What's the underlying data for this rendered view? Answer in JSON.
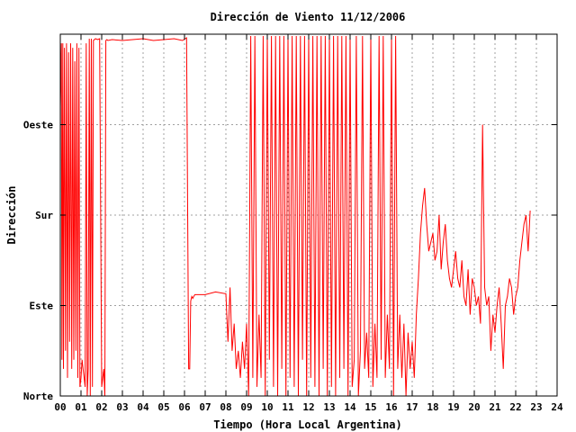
{
  "chart_data": {
    "type": "line",
    "title": "Dirección de Viento 11/12/2006",
    "xlabel": "Tiempo (Hora Local Argentina)",
    "ylabel": "Dirección",
    "xlim": [
      0,
      24
    ],
    "ylim": [
      0,
      4
    ],
    "x_ticks": [
      {
        "value": 0,
        "label": "00"
      },
      {
        "value": 1,
        "label": "01"
      },
      {
        "value": 2,
        "label": "02"
      },
      {
        "value": 3,
        "label": "03"
      },
      {
        "value": 4,
        "label": "04"
      },
      {
        "value": 5,
        "label": "05"
      },
      {
        "value": 6,
        "label": "06"
      },
      {
        "value": 7,
        "label": "07"
      },
      {
        "value": 8,
        "label": "08"
      },
      {
        "value": 9,
        "label": "09"
      },
      {
        "value": 10,
        "label": "10"
      },
      {
        "value": 11,
        "label": "11"
      },
      {
        "value": 12,
        "label": "12"
      },
      {
        "value": 13,
        "label": "13"
      },
      {
        "value": 14,
        "label": "14"
      },
      {
        "value": 15,
        "label": "15"
      },
      {
        "value": 16,
        "label": "16"
      },
      {
        "value": 17,
        "label": "17"
      },
      {
        "value": 18,
        "label": "18"
      },
      {
        "value": 19,
        "label": "19"
      },
      {
        "value": 20,
        "label": "20"
      },
      {
        "value": 21,
        "label": "21"
      },
      {
        "value": 22,
        "label": "22"
      },
      {
        "value": 23,
        "label": "23"
      },
      {
        "value": 24,
        "label": "24"
      }
    ],
    "y_ticks": [
      {
        "value": 0,
        "label": "Norte"
      },
      {
        "value": 1,
        "label": "Este"
      },
      {
        "value": 2,
        "label": "Sur"
      },
      {
        "value": 3,
        "label": "Oeste"
      }
    ],
    "grid": true,
    "legend": "none",
    "colors": {
      "series": "#ff0000",
      "grid": "#a0a0a0",
      "frame": "#000000"
    },
    "series": [
      {
        "color": "#ff0000",
        "x": [
          0.0,
          0.05,
          0.08,
          0.12,
          0.15,
          0.2,
          0.25,
          0.3,
          0.35,
          0.4,
          0.45,
          0.5,
          0.55,
          0.6,
          0.65,
          0.7,
          0.75,
          0.8,
          0.85,
          0.9,
          0.95,
          1.0,
          1.05,
          1.1,
          1.15,
          1.2,
          1.25,
          1.3,
          1.35,
          1.4,
          1.45,
          1.5,
          1.55,
          1.6,
          1.65,
          1.7,
          1.8,
          1.9,
          2.0,
          2.1,
          2.15,
          2.2,
          2.25,
          2.3,
          2.5,
          3.0,
          3.5,
          4.0,
          4.5,
          5.0,
          5.5,
          5.9,
          6.1,
          6.2,
          6.25,
          6.3,
          6.35,
          6.4,
          6.45,
          6.5,
          7.0,
          7.5,
          8.0,
          8.1,
          8.2,
          8.3,
          8.4,
          8.5,
          8.6,
          8.7,
          8.8,
          8.9,
          9.0,
          9.1,
          9.2,
          9.3,
          9.4,
          9.5,
          9.6,
          9.7,
          9.8,
          9.9,
          10.0,
          10.1,
          10.2,
          10.3,
          10.4,
          10.5,
          10.6,
          10.7,
          10.8,
          10.9,
          11.0,
          11.1,
          11.2,
          11.3,
          11.4,
          11.5,
          11.6,
          11.7,
          11.8,
          11.9,
          12.0,
          12.1,
          12.2,
          12.3,
          12.4,
          12.5,
          12.6,
          12.7,
          12.8,
          12.9,
          13.0,
          13.1,
          13.2,
          13.3,
          13.4,
          13.5,
          13.6,
          13.7,
          13.8,
          13.9,
          14.0,
          14.1,
          14.2,
          14.3,
          14.4,
          14.5,
          14.6,
          14.7,
          14.8,
          14.9,
          15.0,
          15.1,
          15.2,
          15.3,
          15.4,
          15.5,
          15.6,
          15.7,
          15.8,
          15.9,
          16.0,
          16.1,
          16.2,
          16.3,
          16.4,
          16.5,
          16.6,
          16.7,
          16.8,
          16.9,
          17.0,
          17.1,
          17.2,
          17.3,
          17.4,
          17.5,
          17.6,
          17.7,
          17.8,
          17.9,
          18.0,
          18.1,
          18.2,
          18.3,
          18.4,
          18.5,
          18.6,
          18.7,
          18.8,
          18.9,
          19.0,
          19.1,
          19.2,
          19.3,
          19.4,
          19.5,
          19.6,
          19.7,
          19.8,
          19.9,
          20.0,
          20.1,
          20.2,
          20.3,
          20.4,
          20.5,
          20.6,
          20.7,
          20.8,
          20.9,
          21.0,
          21.1,
          21.2,
          21.3,
          21.4,
          21.5,
          21.6,
          21.7,
          21.8,
          21.9,
          22.0,
          22.1,
          22.2,
          22.3,
          22.4,
          22.5,
          22.6,
          22.7
        ],
        "y": [
          3.2,
          3.9,
          0.4,
          3.9,
          0.3,
          3.85,
          0.5,
          3.9,
          0.2,
          3.8,
          0.6,
          3.9,
          0.3,
          3.85,
          0.4,
          3.7,
          0.5,
          3.9,
          0.2,
          3.85,
          0.1,
          0.2,
          0.4,
          0.3,
          0.2,
          0.1,
          3.9,
          0.0,
          0.3,
          3.95,
          0.0,
          3.95,
          0.1,
          3.93,
          3.94,
          3.95,
          3.94,
          3.95,
          0.1,
          0.3,
          0.0,
          3.93,
          3.94,
          3.93,
          3.94,
          3.93,
          3.94,
          3.95,
          3.93,
          3.94,
          3.95,
          3.93,
          3.96,
          0.3,
          0.3,
          1.05,
          1.1,
          1.08,
          1.1,
          1.12,
          1.12,
          1.15,
          1.13,
          0.6,
          1.2,
          0.5,
          0.8,
          0.3,
          0.5,
          0.2,
          0.6,
          0.3,
          0.8,
          0.0,
          3.98,
          0.2,
          3.98,
          0.1,
          0.9,
          0.2,
          3.98,
          0.0,
          3.98,
          0.4,
          3.98,
          0.1,
          3.98,
          0.0,
          3.98,
          0.3,
          3.98,
          0.0,
          3.98,
          0.2,
          3.98,
          0.1,
          3.98,
          0.0,
          3.98,
          0.4,
          3.98,
          0.0,
          3.98,
          0.2,
          3.98,
          0.1,
          3.98,
          0.0,
          3.98,
          0.3,
          3.98,
          0.0,
          3.98,
          0.1,
          3.98,
          0.0,
          3.98,
          0.2,
          3.98,
          0.3,
          3.98,
          0.0,
          3.98,
          0.1,
          0.4,
          3.98,
          0.0,
          0.5,
          3.98,
          0.3,
          0.7,
          0.2,
          3.98,
          0.1,
          0.8,
          0.2,
          3.98,
          0.4,
          3.98,
          0.2,
          0.9,
          0.3,
          3.98,
          0.0,
          3.98,
          0.3,
          0.9,
          0.2,
          0.8,
          0.0,
          0.7,
          0.3,
          0.6,
          0.2,
          0.9,
          1.3,
          1.8,
          2.1,
          2.3,
          1.9,
          1.6,
          1.7,
          1.8,
          1.5,
          1.6,
          2.0,
          1.4,
          1.7,
          1.9,
          1.5,
          1.3,
          1.2,
          1.4,
          1.6,
          1.3,
          1.2,
          1.5,
          1.1,
          1.0,
          1.4,
          0.9,
          1.3,
          1.2,
          1.0,
          1.1,
          0.8,
          3.0,
          1.2,
          1.0,
          1.1,
          0.5,
          0.9,
          0.7,
          1.0,
          1.2,
          0.8,
          0.3,
          1.0,
          1.1,
          1.3,
          1.2,
          0.9,
          1.1,
          1.2,
          1.5,
          1.7,
          1.9,
          2.0,
          1.6,
          2.05
        ]
      }
    ]
  }
}
